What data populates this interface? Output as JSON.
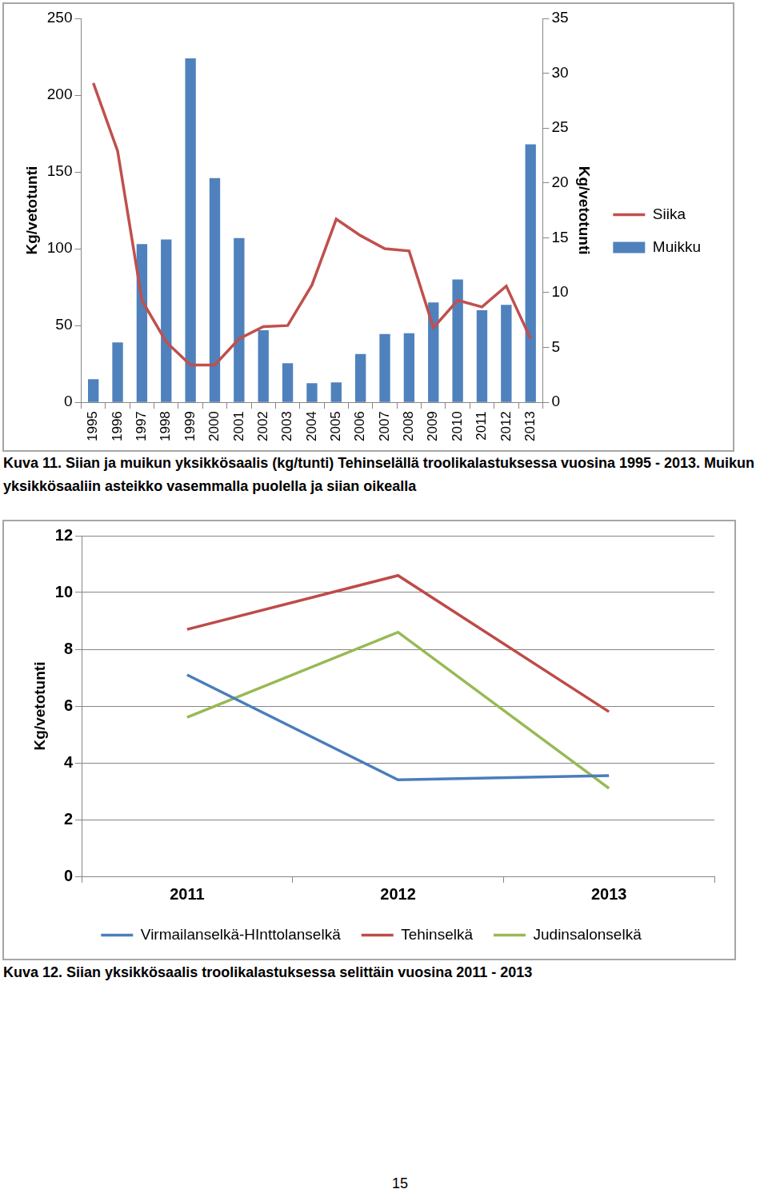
{
  "chart_data": [
    {
      "type": "bar",
      "title": "Kuva 11. Siian ja muikun yksikkösaalis (kg/tunti) Tehinselällä troolikalastuksessa vuosina 1995 - 2013. Muikun yksikkösaaliin asteikko vasemmalla puolella ja siian oikealla",
      "categories": [
        "1995",
        "1996",
        "1997",
        "1998",
        "1999",
        "2000",
        "2001",
        "2002",
        "2003",
        "2004",
        "2005",
        "2006",
        "2007",
        "2008",
        "2009",
        "2010",
        "2011",
        "2012",
        "2013"
      ],
      "series": [
        {
          "name": "Muikku",
          "color": "#4f81bd",
          "type": "bar",
          "values": [
            15,
            39,
            103,
            106,
            224,
            146,
            107,
            47,
            25.5,
            12.5,
            13,
            31.5,
            44.5,
            45,
            65,
            80,
            60,
            63.5,
            168
          ]
        },
        {
          "name": "Siika",
          "color": "#c0504d",
          "type": "line",
          "axis": "y2",
          "values": [
            29.1,
            22.9,
            9.3,
            5.5,
            3.4,
            3.4,
            5.8,
            6.9,
            7.0,
            10.7,
            16.7,
            15.2,
            14.0,
            13.8,
            6.8,
            9.3,
            8.7,
            10.6,
            5.8
          ]
        }
      ],
      "ylabel": "Kg/vetotunti",
      "y2label": "Kg/vetotunti",
      "ylim": [
        0,
        250
      ],
      "yticks": [
        0,
        50,
        100,
        150,
        200,
        250
      ],
      "y2lim": [
        0,
        35
      ],
      "y2ticks": [
        0,
        5,
        10,
        15,
        20,
        25,
        30,
        35
      ],
      "grid": false,
      "legend": "right"
    },
    {
      "type": "line",
      "title": "Kuva 12. Siian yksikkösaalis troolikalastuksessa selittäin vuosina 2011 - 2013",
      "categories": [
        "2011",
        "2012",
        "2013"
      ],
      "series": [
        {
          "name": "Virmailanselkä-HInttolanselkä",
          "color": "#4a7ebb",
          "values": [
            7.1,
            3.4,
            3.55
          ]
        },
        {
          "name": "Tehinselkä",
          "color": "#be4b48",
          "values": [
            8.7,
            10.6,
            5.8
          ]
        },
        {
          "name": "Judinsalonselkä",
          "color": "#98b954",
          "values": [
            5.6,
            8.6,
            3.1
          ]
        }
      ],
      "ylabel": "Kg/vetotunti",
      "ylim": [
        0,
        12
      ],
      "yticks": [
        0,
        2,
        4,
        6,
        8,
        10,
        12
      ],
      "grid": true,
      "legend": "bottom"
    }
  ],
  "page": {
    "number": 15
  }
}
